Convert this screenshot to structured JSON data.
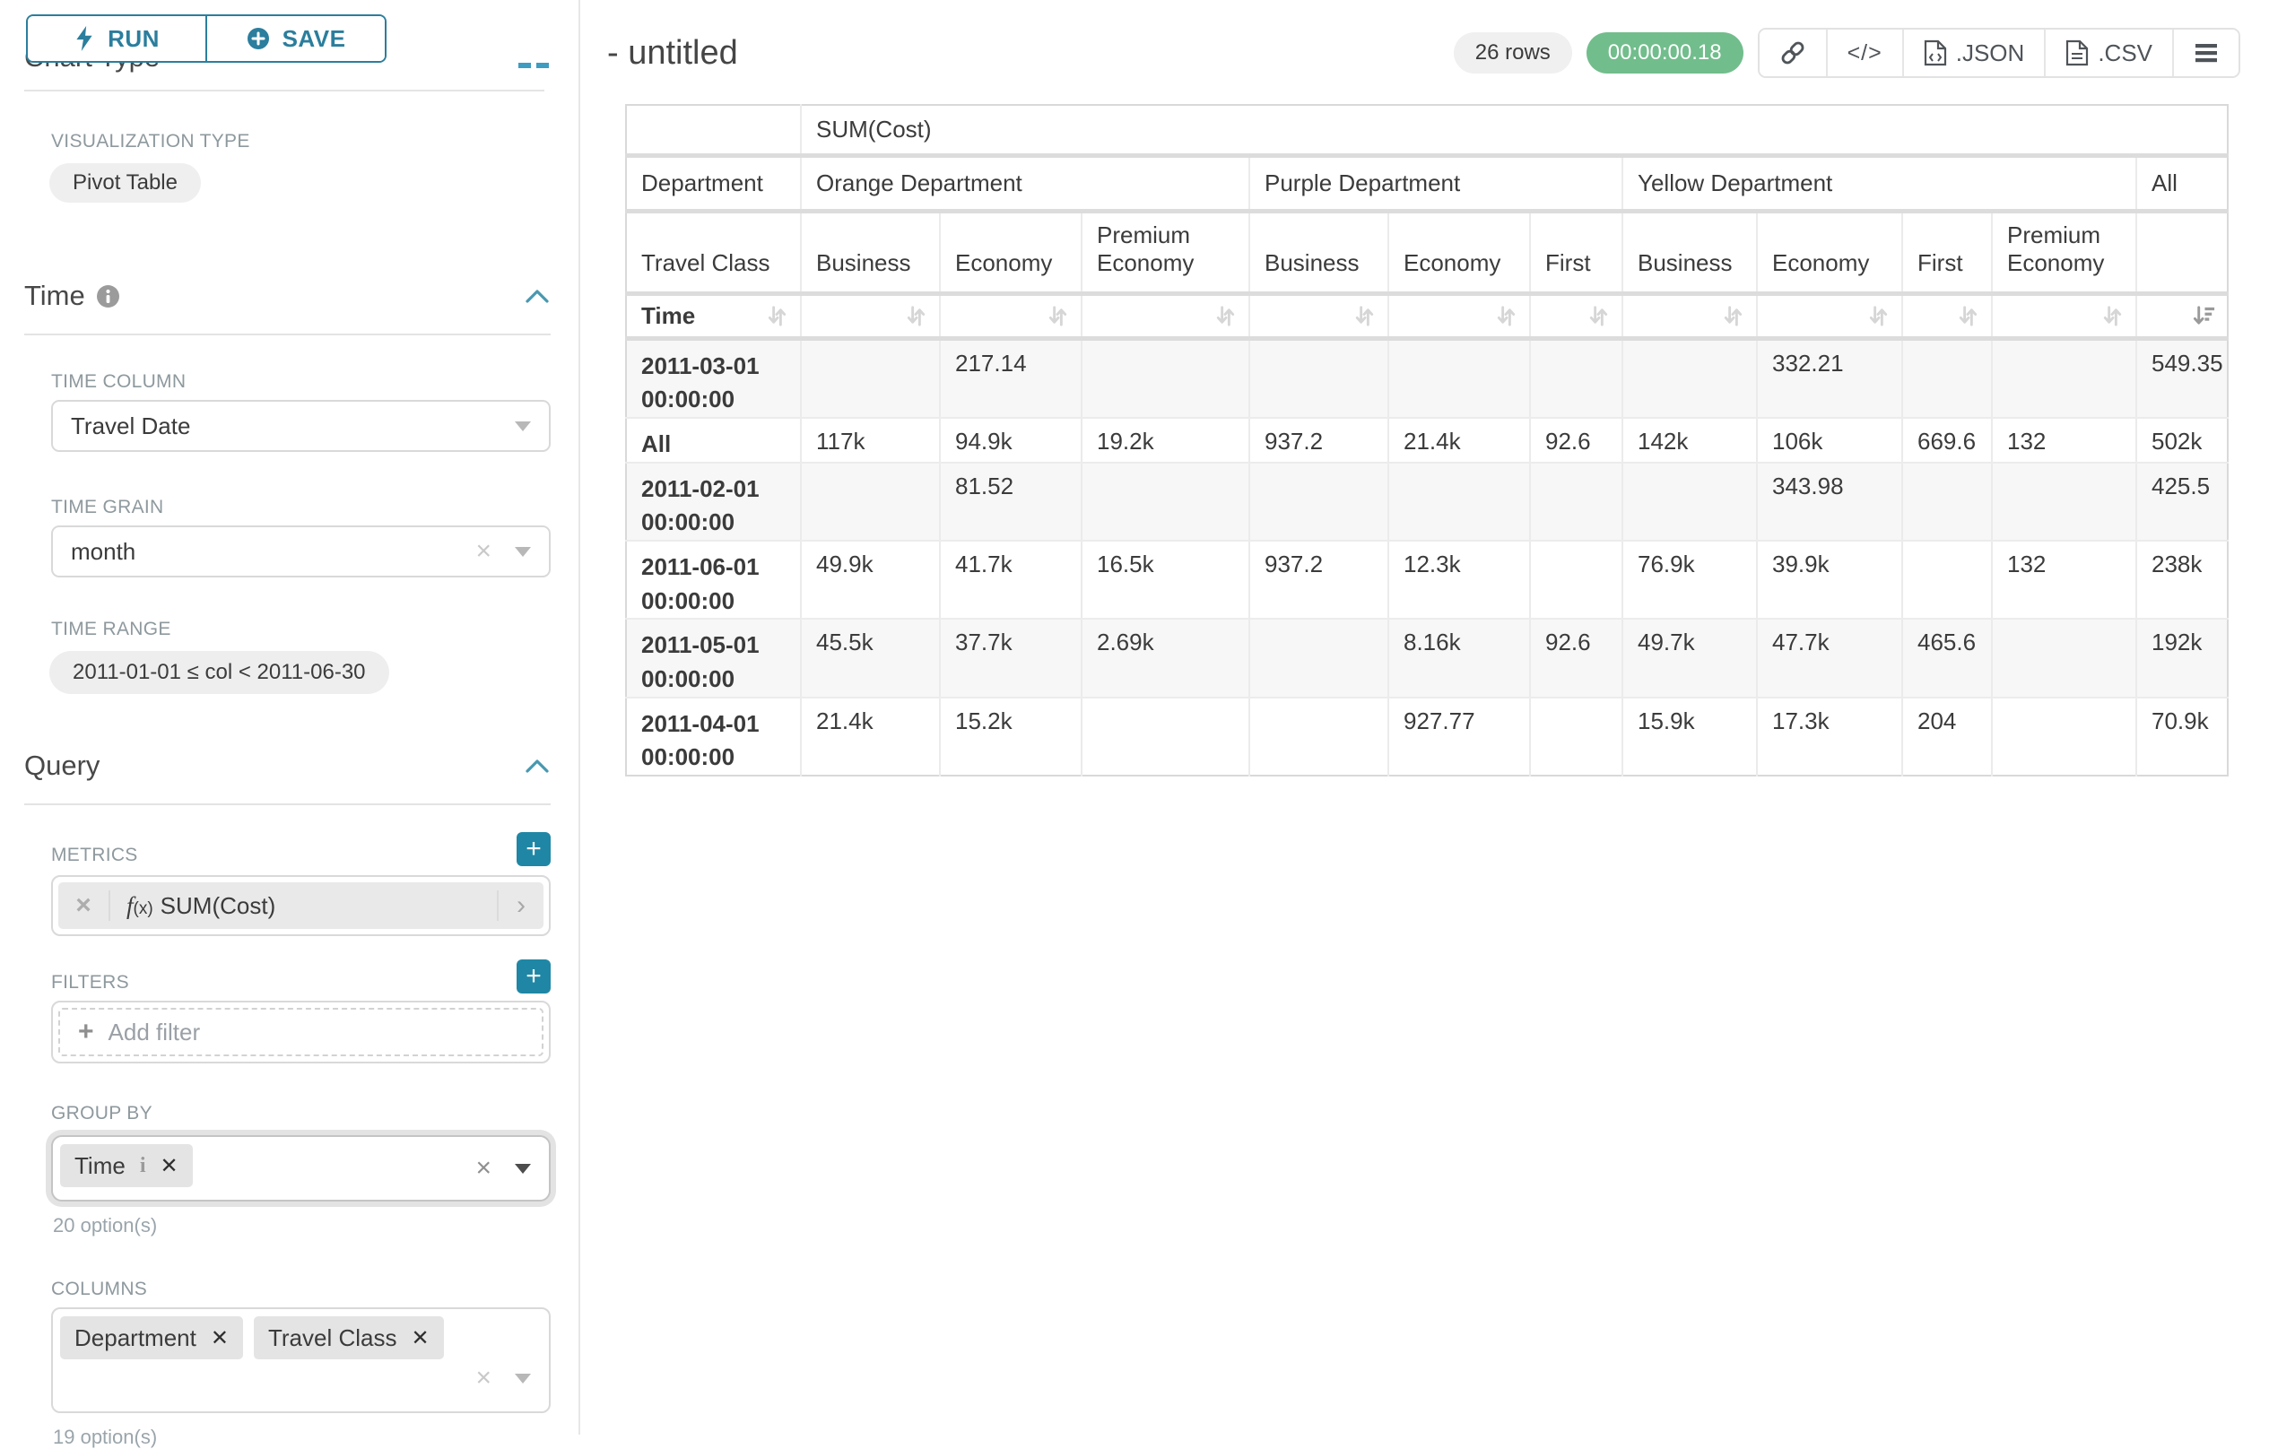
{
  "sidebar": {
    "run_label": "RUN",
    "save_label": "SAVE",
    "chart_type_heading": "Chart Type",
    "visualization": {
      "label": "VISUALIZATION TYPE",
      "value": "Pivot Table"
    },
    "time_section": {
      "title": "Time",
      "time_column_label": "TIME COLUMN",
      "time_column_value": "Travel Date",
      "time_grain_label": "TIME GRAIN",
      "time_grain_value": "month",
      "time_range_label": "TIME RANGE",
      "time_range_value": "2011-01-01 ≤ col < 2011-06-30"
    },
    "query_section": {
      "title": "Query",
      "metrics_label": "METRICS",
      "metric_fx": "f",
      "metric_fx_arg": "(x)",
      "metric_value": "SUM(Cost)",
      "filters_label": "FILTERS",
      "add_filter_placeholder": "Add filter",
      "group_by_label": "GROUP BY",
      "group_by_values": [
        "Time"
      ],
      "group_by_hint": "20 option(s)",
      "columns_label": "COLUMNS",
      "columns_values": [
        "Department",
        "Travel Class"
      ],
      "columns_hint": "19 option(s)"
    }
  },
  "header": {
    "title": "- untitled",
    "row_count_badge": "26 rows",
    "timer_badge": "00:00:00.18",
    "code_glyph": "</>",
    "json_label": ".JSON",
    "csv_label": ".CSV"
  },
  "icons": {
    "run": "lightning-bolt",
    "save": "plus-circle",
    "time_info": "info-circle",
    "section_collapse": "chevron-up",
    "metric_remove": "x",
    "metric_expand": "chevron-right",
    "share": "link-chain",
    "embed": "code-brackets",
    "json_export": "file-code",
    "csv_export": "file-text",
    "menu": "hamburger",
    "sort": "arrows-up-down",
    "sort_active": "sort-amount-desc"
  },
  "main": {
    "pivot_table": {
      "metric_header": "SUM(Cost)",
      "row_dimension": "Time",
      "col_dimension_1": "Department",
      "col_dimension_2": "Travel Class",
      "department_groups": [
        {
          "name": "Orange Department",
          "classes": [
            "Business",
            "Economy",
            "Premium Economy"
          ]
        },
        {
          "name": "Purple Department",
          "classes": [
            "Business",
            "Economy",
            "First"
          ]
        },
        {
          "name": "Yellow Department",
          "classes": [
            "Business",
            "Economy",
            "First",
            "Premium Economy"
          ]
        },
        {
          "name": "All",
          "classes": [
            ""
          ]
        }
      ],
      "rows": [
        {
          "label": "2011-03-01 00:00:00",
          "values": [
            "",
            "217.14",
            "",
            "",
            "",
            "",
            "",
            "332.21",
            "",
            "",
            "549.35"
          ]
        },
        {
          "label": "All",
          "values": [
            "117k",
            "94.9k",
            "19.2k",
            "937.2",
            "21.4k",
            "92.6",
            "142k",
            "106k",
            "669.6",
            "132",
            "502k"
          ]
        },
        {
          "label": "2011-02-01 00:00:00",
          "values": [
            "",
            "81.52",
            "",
            "",
            "",
            "",
            "",
            "343.98",
            "",
            "",
            "425.5"
          ]
        },
        {
          "label": "2011-06-01 00:00:00",
          "values": [
            "49.9k",
            "41.7k",
            "16.5k",
            "937.2",
            "12.3k",
            "",
            "76.9k",
            "39.9k",
            "",
            "132",
            "238k"
          ]
        },
        {
          "label": "2011-05-01 00:00:00",
          "values": [
            "45.5k",
            "37.7k",
            "2.69k",
            "",
            "8.16k",
            "92.6",
            "49.7k",
            "47.7k",
            "465.6",
            "",
            "192k"
          ]
        },
        {
          "label": "2011-04-01 00:00:00",
          "values": [
            "21.4k",
            "15.2k",
            "",
            "",
            "927.77",
            "",
            "15.9k",
            "17.3k",
            "204",
            "",
            "70.9k"
          ]
        }
      ]
    }
  }
}
